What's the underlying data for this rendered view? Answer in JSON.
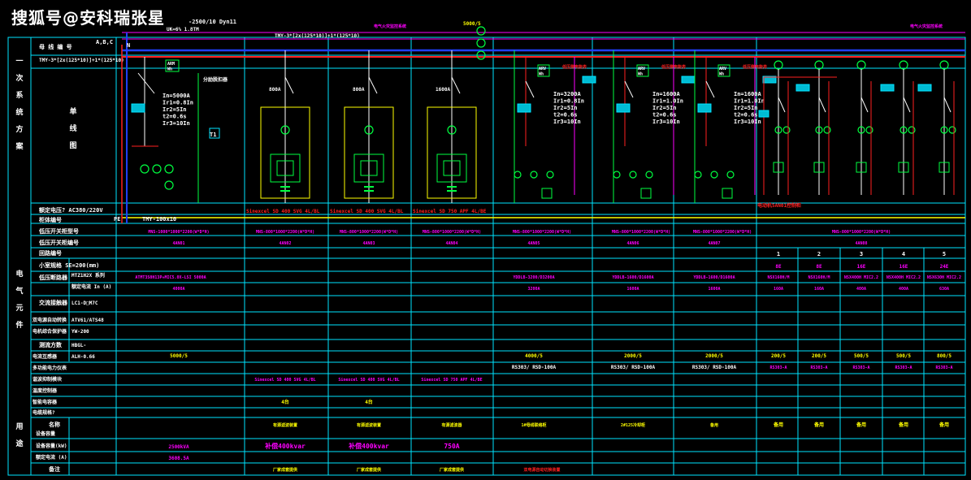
{
  "watermark": "搜狐号@安科瑞张星",
  "top": {
    "transformer": "-2500/10 Dyn11",
    "busbar": "TMY-3*[2x(125*10)]+1*(125*10)",
    "busbar2": "TMY-3*[2x(125*10)]+1*(125*10)",
    "phases": "A,B,C",
    "n": "N",
    "pe": "PE",
    "pe_bar": "TMY-100x10",
    "ct_ratio": "5000/5",
    "ct_note": "UK=6%  1.8TM",
    "magenta_note1": "电气火灾监控系统",
    "magenta_note2": "电气火灾监控系统"
  },
  "left_labels": {
    "system": "一次系统方案",
    "loop_no": "母线编号",
    "busbar_spec": "TMY-3*[2x(125*10)]+1*(125*10)",
    "single_line": "单线图",
    "rated_voltage": "额定电压? AC380/220V",
    "panel_no": "柜体编号",
    "equipment": "电气元件",
    "usage": "用途",
    "cabinet_type": "低压开关柜型号",
    "cabinet_no": "低压开关柜编号",
    "circuit_no": "回路编号",
    "cable": "小室规格  SE=200(mm)",
    "breaker": "低压断路器",
    "breaker_model": "MTZ1H2X  系列",
    "breaker_in": "额定电流 In (A)",
    "contactor": "交流接触器",
    "contactor_val": "LC1-D□M7C",
    "ats": "双电源自动转换",
    "ats_val": "ATV61/ATS48",
    "protector": "电机综合保护器",
    "protector_val": "YW-200",
    "ct": "测流方数",
    "ct_val": "HBGL-",
    "current_tf": "电流互感器",
    "current_tf_val": "ALH-0.66",
    "meter": "多功能电力仪表",
    "harmonic": "谐波抑制模块",
    "temp": "温度控制器",
    "smart": "智能电容器",
    "dimension": "电缆规格?",
    "name": "名称",
    "capacity": "设备容量",
    "capacity2": "设备容量(kW)",
    "rated_current": "额定电流 (A)",
    "remarks": "备注"
  },
  "incoming": {
    "breaker": "In=5000A\nIr1=0.8In\nIr2=5In\nt2=0.6s\nIr3=10In",
    "cabinet_type": "MNS-1000*1000*2200(W*D*H)",
    "cabinet_no": "4AN01",
    "breaker_model": "ATMT3S0H13P+MIC5.0X-LSI 5000A",
    "breaker_in": "4000A",
    "ct": "5000/5",
    "capacity": "2500kVA",
    "rated": "3608.5A",
    "meter": "ARM\nWh"
  },
  "svg_cols": [
    {
      "cabinet": "MNS-800*1000*2200(W*D*H)",
      "no": "4AN02",
      "label": "Sinexcel SD 400 SVG 4L/BL",
      "harm": "Sinexcel SD 400 SVG 4L/BL",
      "breaker": "800A",
      "cap": "补偿400kvar",
      "smart": "4台",
      "name": "有源滤波装置",
      "remark": "厂家成套提供"
    },
    {
      "cabinet": "MNS-800*1000*2200(W*D*H)",
      "no": "4AN03",
      "label": "Sinexcel SD 400 SVG 4L/BL",
      "harm": "Sinexcel SD 400 SVG 4L/BL",
      "breaker": "800A",
      "cap": "补偿400kvar",
      "smart": "4台",
      "name": "有源滤波装置",
      "remark": "厂家成套提供"
    },
    {
      "cabinet": "MNS-800*1000*2200(W*D*H)",
      "no": "4AN04",
      "label": "Sinexcel SD 750 APF 4L/BE",
      "harm": "Sinexcel SD 750 APF 4L/BE",
      "breaker": "1600A",
      "cap": "750A",
      "smart": "",
      "name": "有源滤波器",
      "remark": "厂家成套提供"
    }
  ],
  "out_cols": [
    {
      "cabinet": "MNS-800*1000*2200(W*D*H)",
      "no": "4AN05",
      "breaker": "In=3200A\nIr1=0.8In\nIr2=5In\nt2=0.6s\nIr3=10In",
      "model": "YDDLB-3200/D3200A",
      "in": "3200A",
      "ct": "4000/5",
      "meter": "RS303/ RSD-100A",
      "name": "1#母线联络柜",
      "remark": "双电源自动切换装置"
    },
    {
      "cabinet": "MNS-800*1000*2200(W*D*H)",
      "no": "4AN06",
      "breaker": "In=1600A\nIr1=1.0In\nIr2=5In\nt2=0.6s\nIr3=10In",
      "model": "YDDLB-1600/D1600A",
      "in": "1600A",
      "ct": "2000/5",
      "meter": "RS303/ RSD-100A",
      "name": "2#125冷却柜",
      "remark": ""
    },
    {
      "cabinet": "MNS-800*1000*2200(W*D*H)",
      "no": "4AN07",
      "breaker": "In=1600A\nIr1=1.0In\nIr2=5In\nt2=0.6s\nIr3=10In",
      "model": "YDDLB-1600/D1600A",
      "in": "1600A",
      "ct": "2000/5",
      "meter": "RS303/ RSD-100A",
      "name": "备用",
      "remark": ""
    }
  ],
  "multi": {
    "cabinet": "MNS-800*1000*2200(W*D*H)",
    "no": "4AN08",
    "note": "电动机5AN01控制柜",
    "circuits": [
      {
        "n": "1",
        "size": "8E",
        "breaker": "NSX160H/M",
        "in": "160A",
        "ct": "200/5",
        "meter": "RS303-A",
        "name": "备用"
      },
      {
        "n": "2",
        "size": "8E",
        "breaker": "NSX160H/M",
        "in": "160A",
        "ct": "200/5",
        "meter": "RS303-A",
        "name": "备用"
      },
      {
        "n": "3",
        "size": "16E",
        "breaker": "NSX400H MIC2.2",
        "in": "400A",
        "ct": "500/5",
        "meter": "RS303-A",
        "name": "备用"
      },
      {
        "n": "4",
        "size": "16E",
        "breaker": "NSX400H MIC2.2",
        "in": "400A",
        "ct": "500/5",
        "meter": "RS303-A",
        "name": "备用"
      },
      {
        "n": "5",
        "size": "24E",
        "breaker": "NSX630H MIC2.2",
        "in": "630A",
        "ct": "800/5",
        "meter": "RS303-A",
        "name": "备用"
      }
    ]
  },
  "colors": {
    "bg": "#000000",
    "grid": "#00e5ff",
    "magenta": "#ff00ff",
    "green": "#00ff40",
    "red": "#ff2020",
    "yellow": "#ffff00",
    "white": "#ffffff",
    "blue": "#2040ff"
  }
}
